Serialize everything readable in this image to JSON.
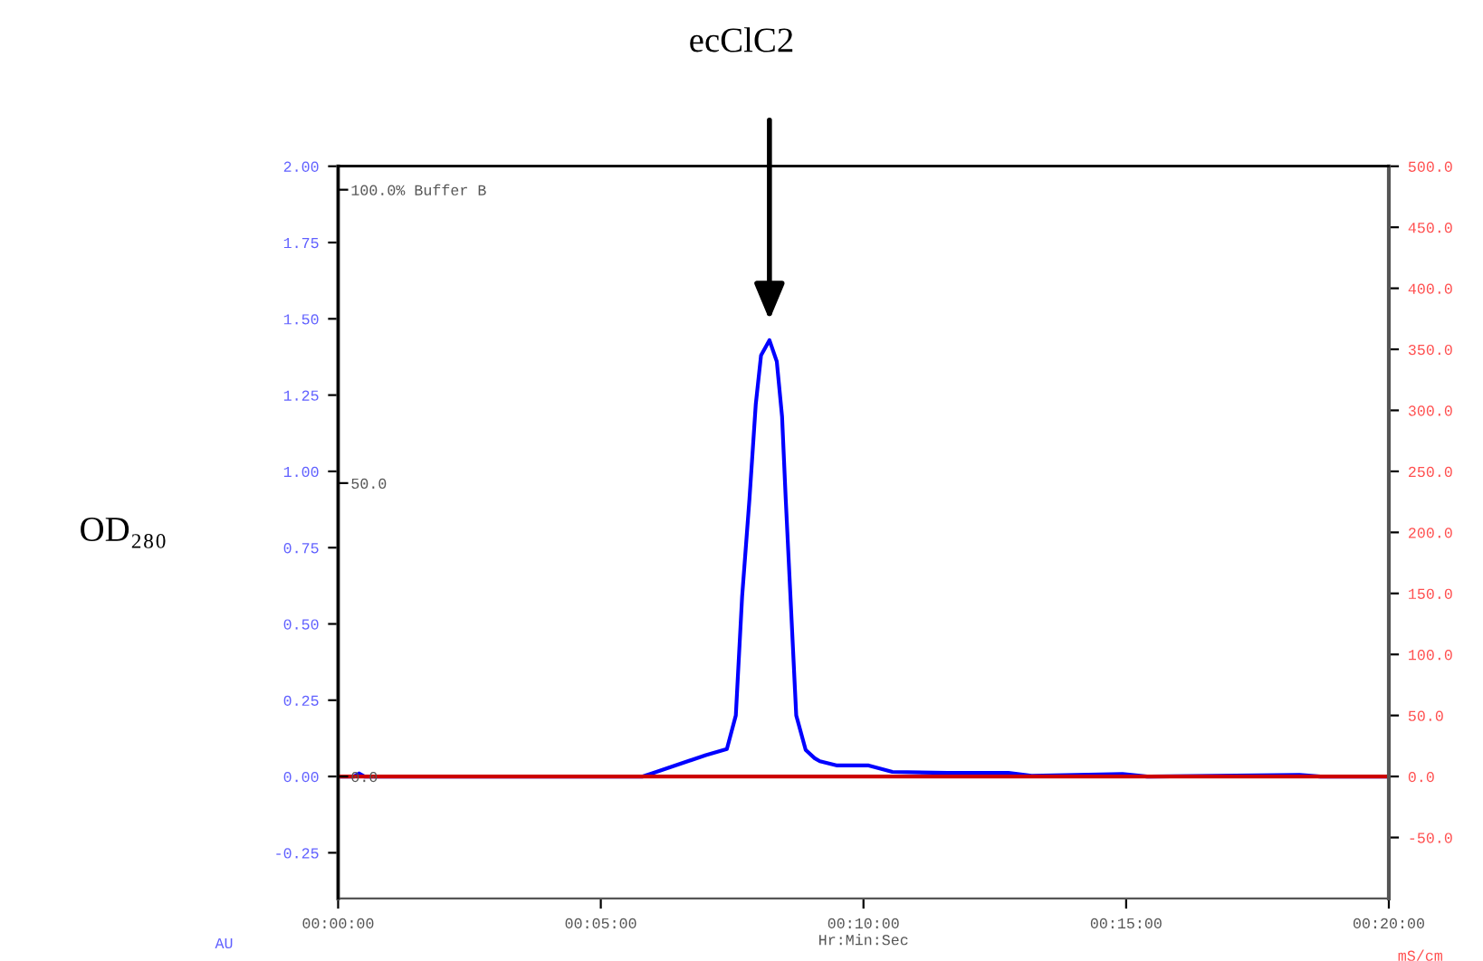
{
  "chart_data": {
    "type": "line",
    "title": "ecClC2",
    "ylabel": "OD₂₈₀",
    "y2label": "mS/cm",
    "xlabel": "Hr:Min:Sec",
    "annotations": [
      "AU"
    ],
    "series": [
      {
        "name": null,
        "color": "#cc0000",
        "axis": "y2",
        "x": [
          0,
          20
        ],
        "values": [
          0,
          0
        ]
      },
      {
        "name": null,
        "color": "#0000ff",
        "axis": "y",
        "x": [
          0,
          0.3,
          0.4,
          0.5,
          5.8,
          5.97,
          7.0,
          7.4,
          7.57,
          7.69,
          7.83,
          7.95,
          8.05,
          8.21,
          8.35,
          8.45,
          8.52,
          8.72,
          8.9,
          9.07,
          9.17,
          9.5,
          10.1,
          10.55,
          11.6,
          12.76,
          13.2,
          14.93,
          15.4,
          18.3,
          18.7,
          20
        ],
        "values": [
          0,
          0,
          0.01,
          0,
          0,
          0.01,
          0.07,
          0.09,
          0.2,
          0.59,
          0.91,
          1.22,
          1.38,
          1.43,
          1.36,
          1.18,
          0.91,
          0.2,
          0.087,
          0.06,
          0.05,
          0.036,
          0.036,
          0.015,
          0.012,
          0.012,
          0.002,
          0.008,
          0,
          0.005,
          0,
          0
        ]
      }
    ],
    "xlim": [
      0,
      20
    ],
    "xticks": [
      {
        "value": 0,
        "label": "00:00:00"
      },
      {
        "value": 5,
        "label": "00:05:00"
      },
      {
        "value": 10,
        "label": "00:10:00"
      },
      {
        "value": 15,
        "label": "00:15:00"
      },
      {
        "value": 20,
        "label": "00:20:00"
      }
    ],
    "ylim": [
      -0.4,
      2.0
    ],
    "yticks": [
      {
        "value": -0.25,
        "label": "-0.25"
      },
      {
        "value": 0,
        "label": "0.00"
      },
      {
        "value": 0.25,
        "label": "0.25"
      },
      {
        "value": 0.5,
        "label": "0.50"
      },
      {
        "value": 0.75,
        "label": "0.75"
      },
      {
        "value": 1.0,
        "label": "1.00"
      },
      {
        "value": 1.25,
        "label": "1.25"
      },
      {
        "value": 1.5,
        "label": "1.50"
      },
      {
        "value": 1.75,
        "label": "1.75"
      },
      {
        "value": 2.0,
        "label": "2.00"
      }
    ],
    "y2lim": [
      -100,
      500
    ],
    "y2ticks": [
      {
        "value": -50,
        "label": "-50.0"
      },
      {
        "value": 0,
        "label": "0.0"
      },
      {
        "value": 50,
        "label": "50.0"
      },
      {
        "value": 100,
        "label": "100.0"
      },
      {
        "value": 150,
        "label": "150.0"
      },
      {
        "value": 200,
        "label": "200.0"
      },
      {
        "value": 250,
        "label": "250.0"
      },
      {
        "value": 300,
        "label": "300.0"
      },
      {
        "value": 350,
        "label": "350.0"
      },
      {
        "value": 400,
        "label": "400.0"
      },
      {
        "value": 450,
        "label": "450.0"
      },
      {
        "value": 500,
        "label": "500.0"
      }
    ],
    "y3lim": [
      -20.8,
      104
    ],
    "y3ticks": [
      {
        "value": 0,
        "label": "0.0"
      },
      {
        "value": 50,
        "label": "50.0"
      },
      {
        "value": 100,
        "label": "100.0% Buffer B"
      }
    ],
    "grid": false,
    "marker": "none",
    "line_style": "solid"
  }
}
